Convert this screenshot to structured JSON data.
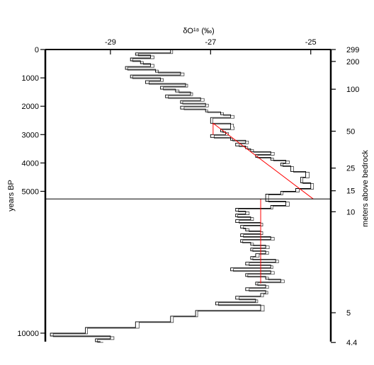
{
  "chart_data": {
    "type": "line",
    "title": "",
    "x_axis": {
      "label": "δO¹⁸ (‰)",
      "position": "top",
      "range": [
        -30.3,
        -24.6
      ],
      "ticks": [
        -29,
        -27,
        -25
      ],
      "tick_labels": [
        "-29",
        "-27",
        "-25"
      ]
    },
    "y_axis_left": {
      "label": "years BP",
      "range": [
        0,
        10300
      ],
      "inverted": true,
      "ticks": [
        0,
        1000,
        2000,
        3000,
        4000,
        5000,
        10000
      ],
      "tick_labels": [
        "0",
        "1000",
        "2000",
        "3000",
        "4000",
        "5000",
        "10000"
      ]
    },
    "y_axis_right": {
      "label": "meters above bedrock",
      "ticks": [
        {
          "label": "299",
          "years": 0
        },
        {
          "label": "200",
          "years": 420
        },
        {
          "label": "100",
          "years": 1400
        },
        {
          "label": "50",
          "years": 2880
        },
        {
          "label": "25",
          "years": 4180
        },
        {
          "label": "15",
          "years": 4980
        },
        {
          "label": "10",
          "years": 5720
        },
        {
          "label": "5",
          "years": 9280
        },
        {
          "label": "4.4",
          "years": 10330
        }
      ]
    },
    "horizontal_line": {
      "years": 5270
    },
    "series": [
      {
        "style": "step",
        "color": "#000000",
        "x": [
          -27.8,
          -28.5,
          -28.2,
          -28.6,
          -28.4,
          -28.2,
          -28.7,
          -28.1,
          -27.6,
          -28.6,
          -28.0,
          -28.3,
          -27.5,
          -28.0,
          -27.7,
          -27.4,
          -27.9,
          -27.2,
          -27.6,
          -27.1,
          -27.6,
          -27.1,
          -26.8,
          -26.6,
          -27.0,
          -26.6,
          -26.6,
          -26.8,
          -26.7,
          -27.0,
          -26.6,
          -26.3,
          -26.5,
          -26.3,
          -26.2,
          -25.8,
          -26.1,
          -25.8,
          -25.5,
          -25.6,
          -25.4,
          -25.1,
          -25.2,
          -25.0,
          -25.3,
          -25.6,
          -25.9,
          -25.5,
          -25.8,
          -26.5,
          -26.3,
          -26.5,
          -26.2,
          -26.5,
          -26.0,
          -26.4,
          -26.3,
          -26.0,
          -26.4,
          -25.8,
          -26.4,
          -26.2,
          -25.9,
          -26.2,
          -25.9,
          -26.1,
          -26.2,
          -25.7,
          -26.3,
          -25.8,
          -26.6,
          -25.8,
          -26.3,
          -25.9,
          -25.6,
          -26.1,
          -25.9,
          -26.3,
          -25.9,
          -26.0,
          -26.5,
          -26.1,
          -26.9,
          -26.0,
          -27.3,
          -27.8,
          -28.5,
          -29.5,
          -30.2,
          -29.0,
          -29.3,
          -29.2
        ],
        "y": [
          0,
          120,
          200,
          300,
          400,
          500,
          600,
          700,
          800,
          900,
          1000,
          1100,
          1200,
          1300,
          1400,
          1500,
          1600,
          1700,
          1800,
          1900,
          2000,
          2100,
          2200,
          2300,
          2400,
          2600,
          2700,
          2800,
          2900,
          3000,
          3100,
          3200,
          3300,
          3400,
          3500,
          3600,
          3700,
          3800,
          3900,
          4000,
          4100,
          4300,
          4500,
          4700,
          4900,
          5000,
          5100,
          5350,
          5500,
          5600,
          5700,
          5800,
          5900,
          6000,
          6100,
          6200,
          6300,
          6400,
          6500,
          6600,
          6700,
          6800,
          6900,
          7000,
          7100,
          7200,
          7300,
          7400,
          7500,
          7600,
          7700,
          7800,
          7900,
          8000,
          8100,
          8200,
          8300,
          8400,
          8500,
          8600,
          8700,
          8800,
          8900,
          9000,
          9200,
          9400,
          9600,
          9800,
          10000,
          10100,
          10200,
          10300
        ]
      }
    ],
    "trend_lines": [
      {
        "color": "#ff0000",
        "x": [
          -26.95,
          -26.95
        ],
        "y": [
          2600,
          3000
        ]
      },
      {
        "color": "#ff0000",
        "x": [
          -26.95,
          -24.95
        ],
        "y": [
          2600,
          5270
        ]
      },
      {
        "color": "#ff0000",
        "x": [
          -26.0,
          -26.0
        ],
        "y": [
          5270,
          8250
        ]
      }
    ]
  }
}
